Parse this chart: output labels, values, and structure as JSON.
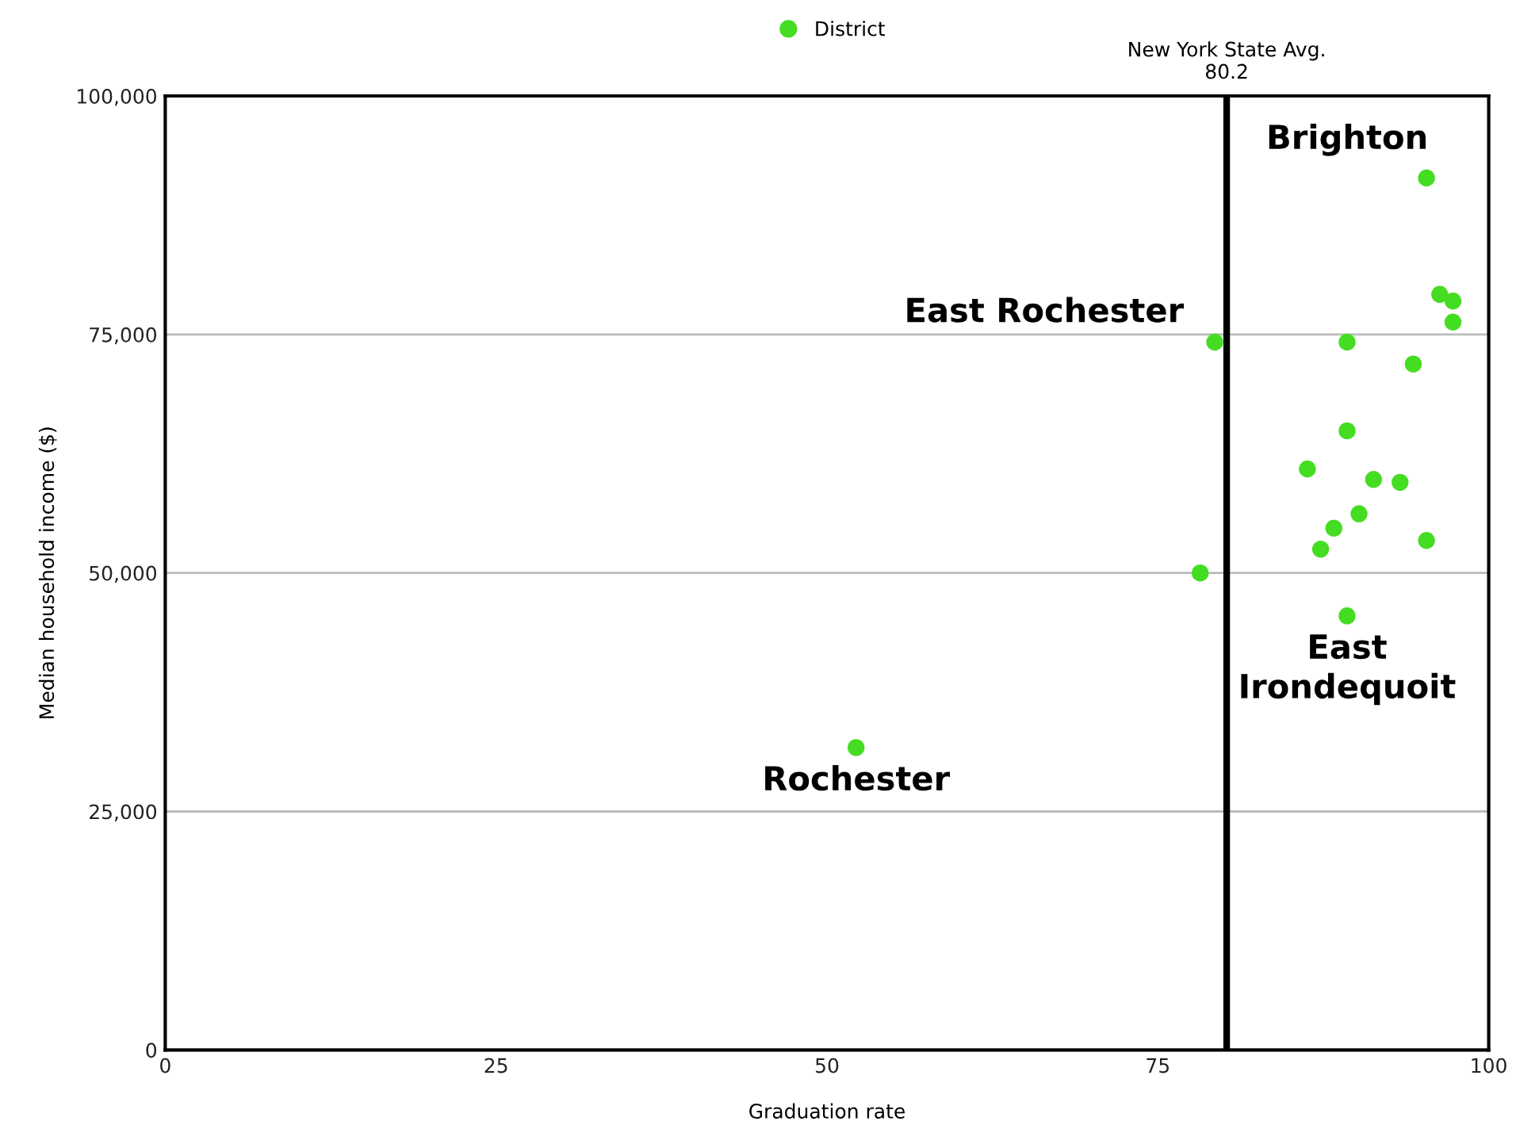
{
  "chart_data": {
    "type": "scatter",
    "xlabel": "Graduation rate",
    "ylabel": "Median household income ($)",
    "xlim": [
      0,
      100
    ],
    "xticks": [
      0,
      25,
      50,
      75,
      100
    ],
    "ylim": [
      0,
      100000
    ],
    "yticks": [
      {
        "value": 0,
        "label": "0"
      },
      {
        "value": 25000,
        "label": "25,000"
      },
      {
        "value": 50000,
        "label": "50,000"
      },
      {
        "value": 75000,
        "label": "75,000"
      },
      {
        "value": 100000,
        "label": "100,000"
      }
    ],
    "grid": "y",
    "legend": "top",
    "marker": "circle",
    "series": [
      {
        "name": "District",
        "color": "#44dd22",
        "x": [
          95.3,
          96.3,
          97.3,
          97.3,
          79.3,
          89.3,
          94.3,
          89.3,
          86.3,
          91.3,
          93.3,
          90.2,
          88.3,
          87.3,
          95.3,
          78.2,
          89.3,
          52.2
        ],
        "values": [
          91400,
          79200,
          78500,
          76300,
          74200,
          74200,
          71900,
          64900,
          60900,
          59800,
          59500,
          56200,
          54700,
          52500,
          53400,
          50000,
          45500,
          31700
        ]
      }
    ],
    "ref_lines": [
      {
        "axis": "x",
        "value": 80.2,
        "label": "New York State Avg.\n80.2",
        "color": "#000000"
      }
    ],
    "annotations": [
      {
        "text": "Brighton",
        "x": 95.3,
        "y": 91400
      },
      {
        "text": "East Rochester",
        "x": 79.3,
        "y": 74200
      },
      {
        "text": "East\nIrondequoit",
        "x": 89.3,
        "y": 45500
      },
      {
        "text": "Rochester",
        "x": 52.2,
        "y": 31700
      }
    ]
  }
}
